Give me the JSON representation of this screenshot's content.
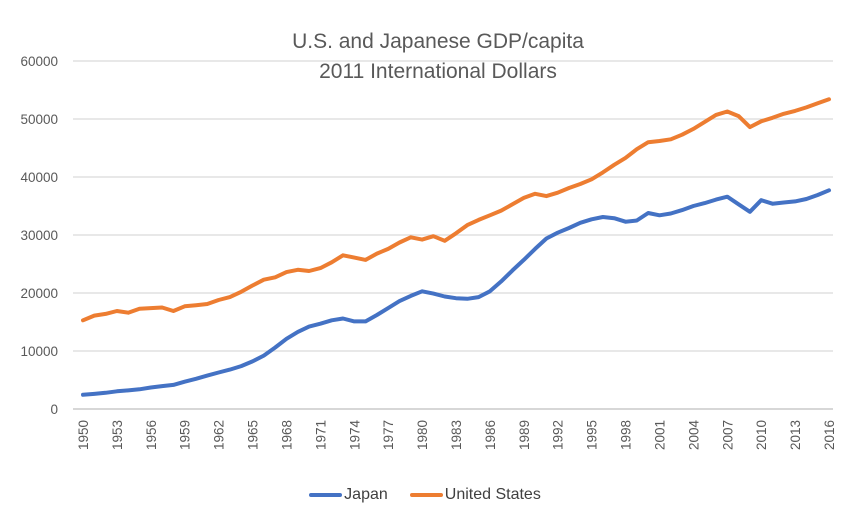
{
  "colors": {
    "background": "#FFFFFF",
    "grid": "#D9D9D9",
    "axis": "#BFBFBF",
    "text": "#595959",
    "legend_text": "#404040",
    "japan_line": "#4472C4",
    "us_line": "#ED7D31"
  },
  "chart_data": {
    "type": "line",
    "title_line1": "U.S. and Japanese GDP/capita",
    "title_line2": "2011 International Dollars",
    "xlabel": "",
    "ylabel": "",
    "ylim": [
      0,
      60000
    ],
    "y_ticks": [
      0,
      10000,
      20000,
      30000,
      40000,
      50000,
      60000
    ],
    "grid": true,
    "legend_position": "bottom",
    "x_tick_labels": [
      "1950",
      "1953",
      "1956",
      "1959",
      "1962",
      "1965",
      "1968",
      "1971",
      "1974",
      "1977",
      "1980",
      "1983",
      "1986",
      "1989",
      "1992",
      "1995",
      "1998",
      "2001",
      "2004",
      "2007",
      "2010",
      "2013",
      "2016"
    ],
    "years": [
      1950,
      1951,
      1952,
      1953,
      1954,
      1955,
      1956,
      1957,
      1958,
      1959,
      1960,
      1961,
      1962,
      1963,
      1964,
      1965,
      1966,
      1967,
      1968,
      1969,
      1970,
      1971,
      1972,
      1973,
      1974,
      1975,
      1976,
      1977,
      1978,
      1979,
      1980,
      1981,
      1982,
      1983,
      1984,
      1985,
      1986,
      1987,
      1988,
      1989,
      1990,
      1991,
      1992,
      1993,
      1994,
      1995,
      1996,
      1997,
      1998,
      1999,
      2000,
      2001,
      2002,
      2003,
      2004,
      2005,
      2006,
      2007,
      2008,
      2009,
      2010,
      2011,
      2012,
      2013,
      2014,
      2015,
      2016
    ],
    "series": [
      {
        "name": "Japan",
        "color": "#4472C4",
        "values": [
          2450,
          2600,
          2800,
          3050,
          3200,
          3400,
          3700,
          3950,
          4150,
          4700,
          5200,
          5750,
          6300,
          6800,
          7400,
          8200,
          9200,
          10600,
          12100,
          13300,
          14200,
          14700,
          15300,
          15600,
          15100,
          15100,
          16200,
          17400,
          18600,
          19500,
          20300,
          19900,
          19400,
          19100,
          19000,
          19300,
          20300,
          22000,
          23900,
          25700,
          27600,
          29400,
          30400,
          31200,
          32100,
          32700,
          33100,
          32900,
          32300,
          32500,
          33800,
          33400,
          33700,
          34300,
          35000,
          35500,
          36100,
          36600,
          35300,
          34000,
          36000,
          35400,
          35600,
          35800,
          36200,
          36900,
          37700
        ]
      },
      {
        "name": "United States",
        "color": "#ED7D31",
        "values": [
          15300,
          16100,
          16400,
          16900,
          16600,
          17300,
          17400,
          17500,
          16900,
          17700,
          17900,
          18100,
          18800,
          19300,
          20200,
          21300,
          22300,
          22700,
          23600,
          24000,
          23800,
          24300,
          25300,
          26500,
          26100,
          25700,
          26800,
          27600,
          28700,
          29600,
          29200,
          29800,
          29000,
          30300,
          31700,
          32600,
          33400,
          34200,
          35300,
          36400,
          37100,
          36700,
          37300,
          38100,
          38800,
          39600,
          40800,
          42100,
          43300,
          44800,
          46000,
          46200,
          46500,
          47300,
          48300,
          49500,
          50700,
          51300,
          50500,
          48600,
          49600,
          50200,
          50900,
          51400,
          52000,
          52700,
          53400
        ]
      }
    ]
  }
}
